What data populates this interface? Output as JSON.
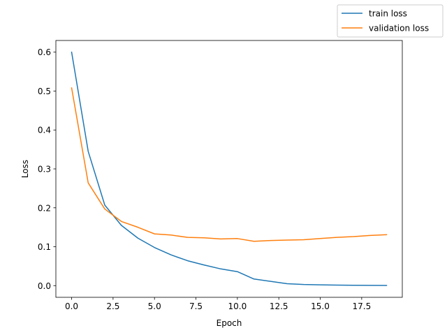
{
  "chart_data": {
    "type": "line",
    "xlabel": "Epoch",
    "ylabel": "Loss",
    "xlim": [
      -0.95,
      19.95
    ],
    "ylim": [
      -0.03,
      0.63
    ],
    "x_ticks": [
      0.0,
      2.5,
      5.0,
      7.5,
      10.0,
      12.5,
      15.0,
      17.5
    ],
    "x_tick_labels": [
      "0.0",
      "2.5",
      "5.0",
      "7.5",
      "10.0",
      "12.5",
      "15.0",
      "17.5"
    ],
    "y_ticks": [
      0.0,
      0.1,
      0.2,
      0.3,
      0.4,
      0.5,
      0.6
    ],
    "y_tick_labels": [
      "0.0",
      "0.1",
      "0.2",
      "0.3",
      "0.4",
      "0.5",
      "0.6"
    ],
    "grid": false,
    "legend_position": "upper-right-outside",
    "x": [
      0,
      1,
      2,
      3,
      4,
      5,
      6,
      7,
      8,
      9,
      10,
      11,
      12,
      13,
      14,
      15,
      16,
      17,
      18,
      19
    ],
    "series": [
      {
        "name": "train loss",
        "color": "#1f77b4",
        "values": [
          0.6,
          0.345,
          0.207,
          0.155,
          0.122,
          0.098,
          0.079,
          0.064,
          0.053,
          0.043,
          0.036,
          0.017,
          0.011,
          0.005,
          0.003,
          0.002,
          0.0015,
          0.001,
          0.0008,
          0.0006
        ]
      },
      {
        "name": "validation loss",
        "color": "#ff7f0e",
        "values": [
          0.508,
          0.264,
          0.197,
          0.165,
          0.15,
          0.133,
          0.13,
          0.124,
          0.123,
          0.12,
          0.121,
          0.114,
          0.116,
          0.117,
          0.118,
          0.121,
          0.124,
          0.126,
          0.129,
          0.131
        ]
      }
    ]
  }
}
